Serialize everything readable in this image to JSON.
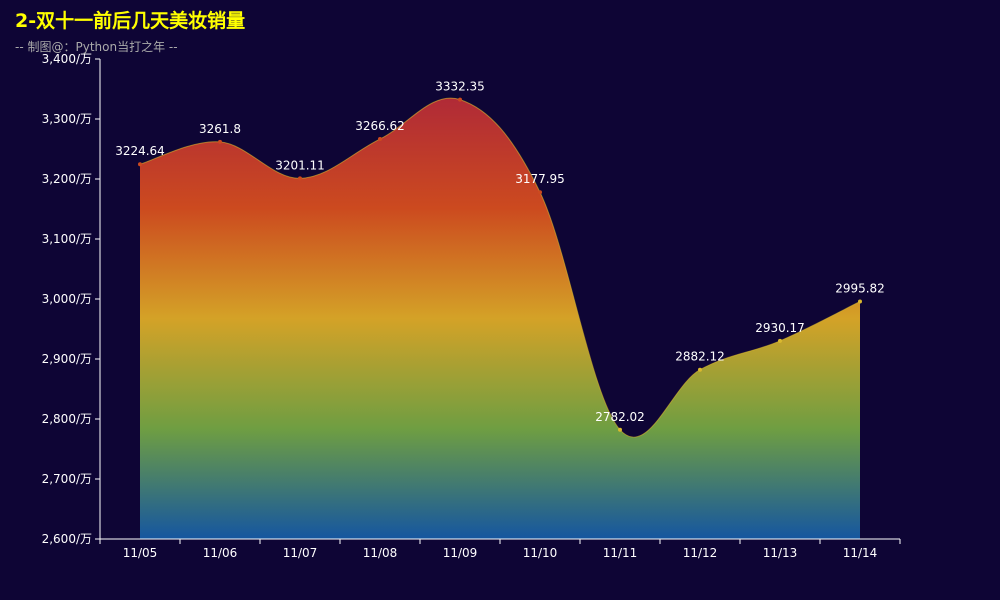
{
  "title": "2-双十一前后几天美妆销量",
  "subtitle": "-- 制图@：Python当打之年 --",
  "colors": {
    "background": "#0e0535",
    "title": "#ffff00",
    "subtitle": "#aaaaaa",
    "axis": "#ffffff",
    "gradient_top": "#b02a37",
    "gradient_upper": "#cc4a1f",
    "gradient_mid": "#d4a227",
    "gradient_lower": "#6f9e42",
    "gradient_bottom": "#1556a0",
    "line_color": "#d9b82e"
  },
  "chart_data": {
    "type": "area",
    "smooth": true,
    "categories": [
      "11/05",
      "11/06",
      "11/07",
      "11/08",
      "11/09",
      "11/10",
      "11/11",
      "11/12",
      "11/13",
      "11/14"
    ],
    "values": [
      3224.64,
      3261.8,
      3201.11,
      3266.62,
      3332.35,
      3177.95,
      2782.02,
      2882.12,
      2930.17,
      2995.82
    ],
    "data_labels": [
      "3224.64",
      "3261.8",
      "3201.11",
      "3266.62",
      "3332.35",
      "3177.95",
      "2782.02",
      "2882.12",
      "2930.17",
      "2995.82"
    ],
    "ylim": [
      2600,
      3400
    ],
    "yticks": [
      2600,
      2700,
      2800,
      2900,
      3000,
      3100,
      3200,
      3300,
      3400
    ],
    "ytick_labels": [
      "2,600/万",
      "2,700/万",
      "2,800/万",
      "2,900/万",
      "3,000/万",
      "3,100/万",
      "3,200/万",
      "3,300/万",
      "3,400/万"
    ],
    "grid": false,
    "legend": false
  }
}
